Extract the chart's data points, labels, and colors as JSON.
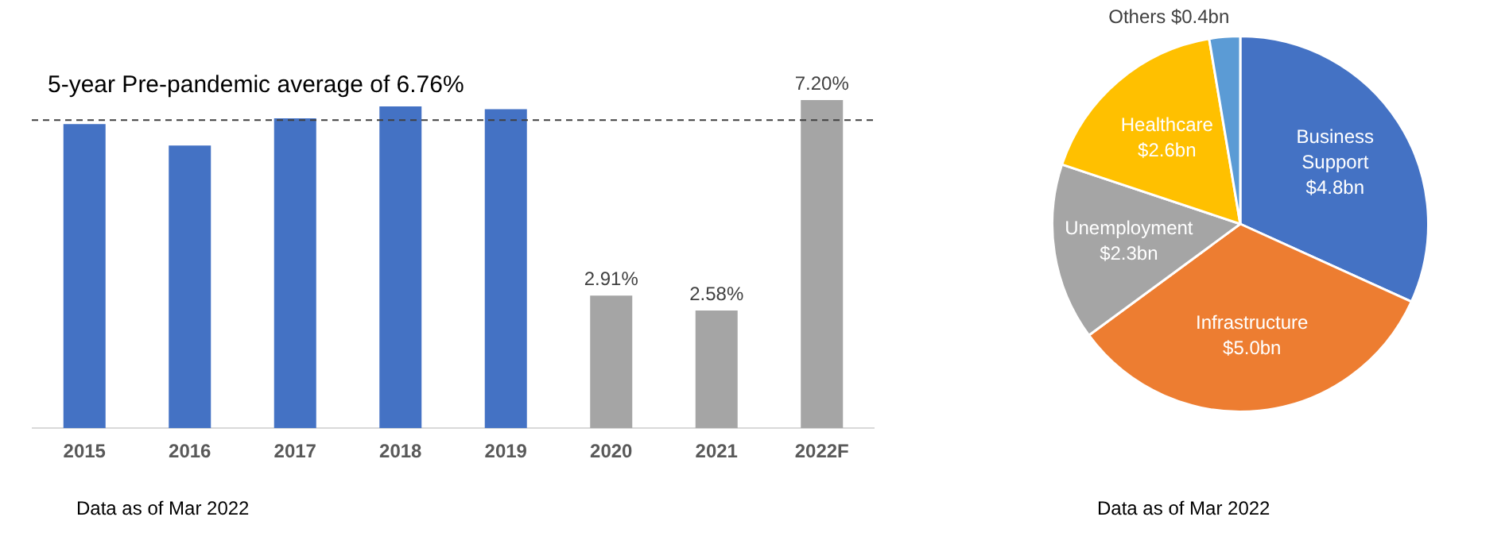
{
  "chart_data": [
    {
      "type": "bar",
      "categories": [
        "2015",
        "2016",
        "2017",
        "2018",
        "2019",
        "2020",
        "2021",
        "2022F"
      ],
      "values": [
        6.67,
        6.2,
        6.8,
        7.06,
        7.0,
        2.91,
        2.58,
        7.2
      ],
      "colors": [
        "#4472c4",
        "#4472c4",
        "#4472c4",
        "#4472c4",
        "#4472c4",
        "#a5a5a5",
        "#a5a5a5",
        "#a5a5a5"
      ],
      "value_labels": [
        null,
        null,
        null,
        null,
        null,
        "2.91%",
        "2.58%",
        "7.20%"
      ],
      "ref_lines": [
        {
          "axis": "y",
          "value": 6.76,
          "label": "5-year Pre-pandemic average of 6.76%",
          "color": "#404040",
          "line_style": "dashed"
        }
      ],
      "tick_labels": "x",
      "grid": false,
      "legend": false,
      "annotations": [
        "Data as of Mar 2022"
      ]
    },
    {
      "type": "pie",
      "categories": [
        "Business Support",
        "Infrastructure",
        "Unemployment",
        "Healthcare",
        "Others"
      ],
      "values": [
        4.8,
        5.0,
        2.3,
        2.6,
        0.4
      ],
      "colors": [
        "#4472c4",
        "#ed7d31",
        "#a5a5a5",
        "#ffc000",
        "#5b9bd5"
      ],
      "value_labels": [
        "$4.8bn",
        "$5.0bn",
        "$2.3bn",
        "$2.6bn",
        "$0.4bn"
      ],
      "legend": false,
      "annotations": [
        "Data as of Mar 2022"
      ]
    }
  ]
}
